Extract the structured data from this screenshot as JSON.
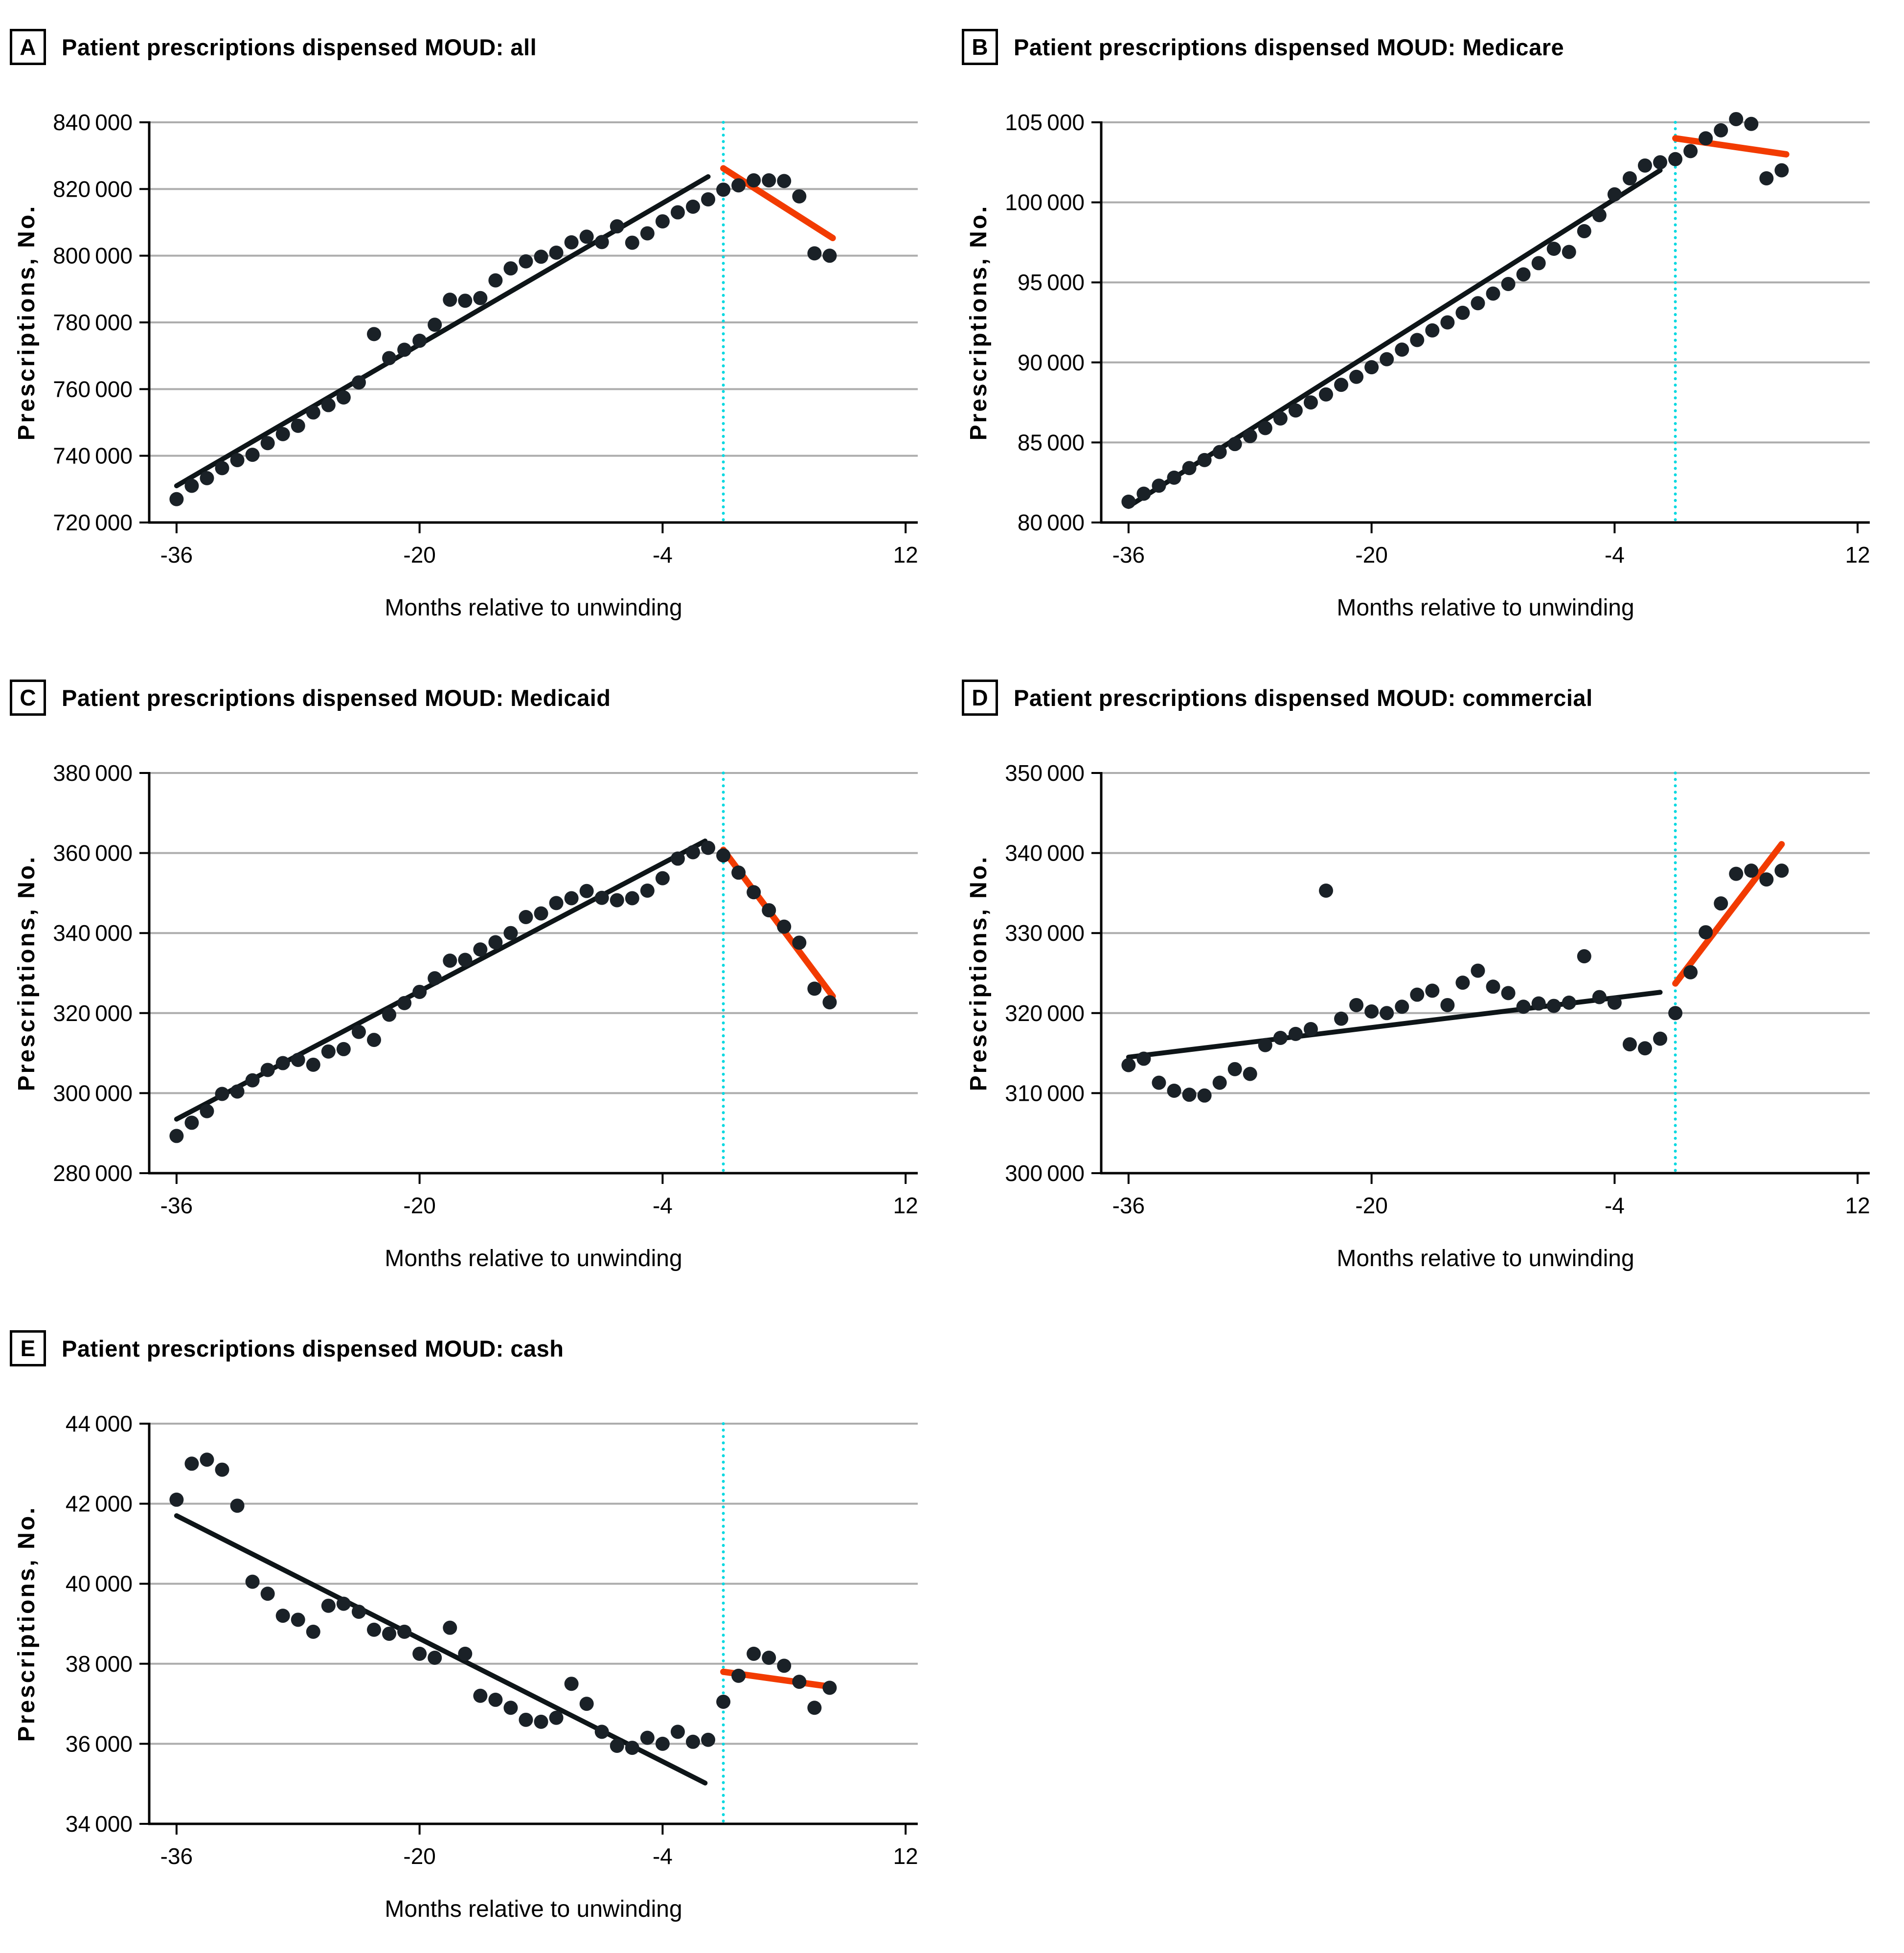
{
  "figure": {
    "xlabel": "Months relative to unwinding",
    "ylabel": "Prescriptions, No."
  },
  "colors": {
    "dot": "#1a2127",
    "trend_pre": "#0e1518",
    "trend_post": "#f23b01",
    "unwinding_line": "#00d8e0",
    "gridline": "#adadad",
    "axis": "#000000"
  },
  "chart_data": [
    {
      "type": "scatter",
      "panel_label": "A",
      "title": "Patient prescriptions dispensed MOUD: all",
      "xlabel": "Months relative to unwinding",
      "ylabel": "Prescriptions, No.",
      "xticks": [
        -36,
        -20,
        -4,
        12
      ],
      "ylim": [
        720000,
        840000
      ],
      "yticks": [
        720000,
        740000,
        760000,
        780000,
        800000,
        820000,
        840000
      ],
      "vline_x": 0,
      "series": [
        {
          "name": "pre",
          "x": [
            -36,
            -35,
            -34,
            -33,
            -32,
            -31,
            -30,
            -29,
            -28,
            -27,
            -26,
            -25,
            -24,
            -23,
            -22,
            -21,
            -20,
            -19,
            -18,
            -17,
            -16,
            -15,
            -14,
            -13,
            -12,
            -11,
            -10,
            -9,
            -8,
            -7,
            -6,
            -5,
            -4,
            -3,
            -2,
            -1
          ],
          "y": [
            727000,
            731000,
            733300,
            736300,
            738700,
            740300,
            743800,
            746500,
            749000,
            753000,
            755200,
            757500,
            762000,
            776500,
            769300,
            771800,
            774500,
            779300,
            786800,
            786500,
            787300,
            792600,
            796200,
            798300,
            799700,
            800900,
            804000,
            805700,
            804100,
            808800,
            803900,
            806700,
            810300,
            813000,
            814700,
            816900
          ]
        },
        {
          "name": "post",
          "x": [
            0,
            1,
            2,
            3,
            4,
            5,
            6,
            7
          ],
          "y": [
            819800,
            821100,
            822600,
            822600,
            822400,
            817800,
            800700,
            800000
          ]
        }
      ],
      "fit_pre": {
        "x1": -36,
        "y1": 731000,
        "x2": -1,
        "y2": 823700
      },
      "fit_post": {
        "x1": 0,
        "y1": 826200,
        "x2": 7.2,
        "y2": 805300
      }
    },
    {
      "type": "scatter",
      "panel_label": "B",
      "title": "Patient prescriptions dispensed MOUD: Medicare",
      "xlabel": "Months relative to unwinding",
      "ylabel": "Prescriptions, No.",
      "xticks": [
        -36,
        -20,
        -4,
        12
      ],
      "ylim": [
        80000,
        105000
      ],
      "yticks": [
        80000,
        85000,
        90000,
        95000,
        100000,
        105000
      ],
      "vline_x": 0,
      "series": [
        {
          "name": "pre",
          "x": [
            -36,
            -35,
            -34,
            -33,
            -32,
            -31,
            -30,
            -29,
            -28,
            -27,
            -26,
            -25,
            -24,
            -23,
            -22,
            -21,
            -20,
            -19,
            -18,
            -17,
            -16,
            -15,
            -14,
            -13,
            -12,
            -11,
            -10,
            -9,
            -8,
            -7,
            -6,
            -5,
            -4,
            -3,
            -2,
            -1
          ],
          "y": [
            81300,
            81800,
            82300,
            82800,
            83400,
            83900,
            84400,
            84900,
            85400,
            85900,
            86500,
            87000,
            87500,
            88000,
            88600,
            89100,
            89700,
            90200,
            90800,
            91400,
            92000,
            92500,
            93100,
            93700,
            94300,
            94900,
            95500,
            96200,
            97100,
            96900,
            98200,
            99200,
            100500,
            101500,
            102300,
            102500
          ]
        },
        {
          "name": "post",
          "x": [
            0,
            1,
            2,
            3,
            4,
            5,
            6,
            7
          ],
          "y": [
            102700,
            103200,
            104000,
            104500,
            105200,
            104900,
            101500,
            102000
          ]
        }
      ],
      "fit_pre": {
        "x1": -36,
        "y1": 81000,
        "x2": -1,
        "y2": 102000
      },
      "fit_post": {
        "x1": 0,
        "y1": 104000,
        "x2": 7.3,
        "y2": 103000
      }
    },
    {
      "type": "scatter",
      "panel_label": "C",
      "title": "Patient prescriptions dispensed MOUD: Medicaid",
      "xlabel": "Months relative to unwinding",
      "ylabel": "Prescriptions, No.",
      "xticks": [
        -36,
        -20,
        -4,
        12
      ],
      "ylim": [
        280000,
        380000
      ],
      "yticks": [
        280000,
        300000,
        320000,
        340000,
        360000,
        380000
      ],
      "vline_x": 0,
      "series": [
        {
          "name": "pre",
          "x": [
            -36,
            -35,
            -34,
            -33,
            -32,
            -31,
            -30,
            -29,
            -28,
            -27,
            -26,
            -25,
            -24,
            -23,
            -22,
            -21,
            -20,
            -19,
            -18,
            -17,
            -16,
            -15,
            -14,
            -13,
            -12,
            -11,
            -10,
            -9,
            -8,
            -7,
            -6,
            -5,
            -4,
            -3,
            -2,
            -1
          ],
          "y": [
            289300,
            292600,
            295500,
            299800,
            300400,
            303200,
            305800,
            307500,
            308300,
            307100,
            310400,
            311000,
            315300,
            313300,
            319600,
            322500,
            325300,
            328700,
            333100,
            333300,
            335900,
            337700,
            340000,
            344000,
            344900,
            347500,
            348700,
            350500,
            348800,
            348200,
            348700,
            350600,
            353700,
            358600,
            360200,
            361300
          ]
        },
        {
          "name": "post",
          "x": [
            0,
            1,
            2,
            3,
            4,
            5,
            6,
            7
          ],
          "y": [
            359400,
            355100,
            350200,
            345700,
            341600,
            337600,
            326100,
            322700
          ]
        }
      ],
      "fit_pre": {
        "x1": -36,
        "y1": 293500,
        "x2": -1.2,
        "y2": 363000
      },
      "fit_post": {
        "x1": 0,
        "y1": 360800,
        "x2": 7.2,
        "y2": 324200
      }
    },
    {
      "type": "scatter",
      "panel_label": "D",
      "title": "Patient prescriptions dispensed MOUD: commercial",
      "xlabel": "Months relative to unwinding",
      "ylabel": "Prescriptions, No.",
      "xticks": [
        -36,
        -20,
        -4,
        12
      ],
      "ylim": [
        300000,
        350000
      ],
      "yticks": [
        300000,
        310000,
        320000,
        330000,
        340000,
        350000
      ],
      "vline_x": 0,
      "series": [
        {
          "name": "pre",
          "x": [
            -36,
            -35,
            -34,
            -33,
            -32,
            -31,
            -30,
            -29,
            -28,
            -27,
            -26,
            -25,
            -24,
            -23,
            -22,
            -21,
            -20,
            -19,
            -18,
            -17,
            -16,
            -15,
            -14,
            -13,
            -12,
            -11,
            -10,
            -9,
            -8,
            -7,
            -6,
            -5,
            -4,
            -3,
            -2,
            -1
          ],
          "y": [
            313500,
            314300,
            311300,
            310300,
            309800,
            309700,
            311300,
            313000,
            312400,
            316000,
            316900,
            317400,
            318000,
            335300,
            319300,
            321000,
            320200,
            320000,
            320800,
            322300,
            322800,
            321000,
            323800,
            325300,
            323300,
            322500,
            320800,
            321200,
            320900,
            321300,
            327100,
            322000,
            321300,
            316100,
            315600,
            316800
          ]
        },
        {
          "name": "post",
          "x": [
            0,
            1,
            2,
            3,
            4,
            5,
            6,
            7
          ],
          "y": [
            320000,
            325100,
            330100,
            333700,
            337400,
            337800,
            336700,
            337800
          ]
        }
      ],
      "fit_pre": {
        "x1": -36,
        "y1": 314500,
        "x2": -1,
        "y2": 322600
      },
      "fit_post": {
        "x1": 0,
        "y1": 323700,
        "x2": 7,
        "y2": 341100
      }
    },
    {
      "type": "scatter",
      "panel_label": "E",
      "title": "Patient prescriptions dispensed MOUD: cash",
      "xlabel": "Months relative to unwinding",
      "ylabel": "Prescriptions, No.",
      "xticks": [
        -36,
        -20,
        -4,
        12
      ],
      "ylim": [
        34000,
        44000
      ],
      "yticks": [
        34000,
        36000,
        38000,
        40000,
        42000,
        44000
      ],
      "vline_x": 0,
      "series": [
        {
          "name": "pre",
          "x": [
            -36,
            -35,
            -34,
            -33,
            -32,
            -31,
            -30,
            -29,
            -28,
            -27,
            -26,
            -25,
            -24,
            -23,
            -22,
            -21,
            -20,
            -19,
            -18,
            -17,
            -16,
            -15,
            -14,
            -13,
            -12,
            -11,
            -10,
            -9,
            -8,
            -7,
            -6,
            -5,
            -4,
            -3,
            -2,
            -1
          ],
          "y": [
            42100,
            43000,
            43100,
            42850,
            41950,
            40050,
            39750,
            39200,
            39100,
            38800,
            39450,
            39500,
            39300,
            38850,
            38750,
            38800,
            38250,
            38150,
            38900,
            38250,
            37200,
            37100,
            36900,
            36600,
            36550,
            36650,
            37500,
            37000,
            36300,
            35950,
            35900,
            36150,
            36000,
            36300,
            36050,
            36100
          ]
        },
        {
          "name": "post",
          "x": [
            0,
            1,
            2,
            3,
            4,
            5,
            6,
            7
          ],
          "y": [
            37050,
            37700,
            38250,
            38150,
            37950,
            37550,
            36900,
            37400
          ]
        }
      ],
      "fit_pre": {
        "x1": -36,
        "y1": 41700,
        "x2": -1.2,
        "y2": 35020
      },
      "fit_post": {
        "x1": 0,
        "y1": 37800,
        "x2": 7.2,
        "y2": 37420
      }
    }
  ]
}
